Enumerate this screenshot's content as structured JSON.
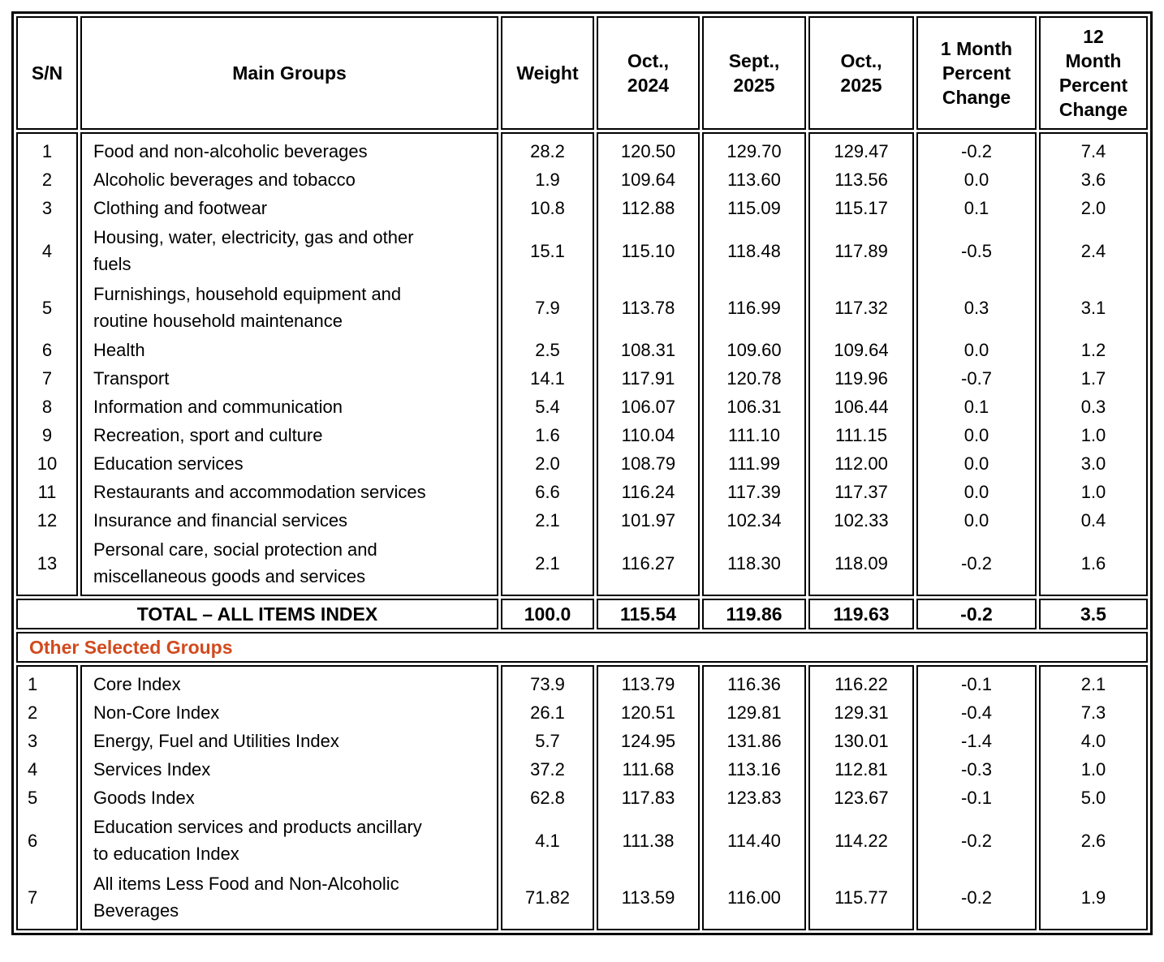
{
  "table": {
    "columns": [
      {
        "key": "sn",
        "label": "S/N"
      },
      {
        "key": "name",
        "label": "Main Groups"
      },
      {
        "key": "weight",
        "label": "Weight"
      },
      {
        "key": "oct2024",
        "label": "Oct.,\n2024"
      },
      {
        "key": "sept2025",
        "label": "Sept.,\n2025"
      },
      {
        "key": "oct2025",
        "label": "Oct.,\n2025"
      },
      {
        "key": "m1",
        "label": "1 Month\nPercent\nChange"
      },
      {
        "key": "m12",
        "label": "12\nMonth\nPercent\nChange"
      }
    ],
    "main_groups": [
      {
        "sn": "1",
        "name": "Food and non-alcoholic beverages",
        "weight": "28.2",
        "oct2024": "120.50",
        "sept2025": "129.70",
        "oct2025": "129.47",
        "m1": "-0.2",
        "m12": "7.4",
        "lines": 1
      },
      {
        "sn": "2",
        "name": "Alcoholic beverages and tobacco",
        "weight": "1.9",
        "oct2024": "109.64",
        "sept2025": "113.60",
        "oct2025": "113.56",
        "m1": "0.0",
        "m12": "3.6",
        "lines": 1
      },
      {
        "sn": "3",
        "name": "Clothing and footwear",
        "weight": "10.8",
        "oct2024": "112.88",
        "sept2025": "115.09",
        "oct2025": "115.17",
        "m1": "0.1",
        "m12": "2.0",
        "lines": 1
      },
      {
        "sn": "4",
        "name": "Housing, water, electricity, gas and other\nfuels",
        "weight": "15.1",
        "oct2024": "115.10",
        "sept2025": "118.48",
        "oct2025": "117.89",
        "m1": "-0.5",
        "m12": "2.4",
        "lines": 2
      },
      {
        "sn": "5",
        "name": "Furnishings, household equipment and\nroutine household maintenance",
        "weight": "7.9",
        "oct2024": "113.78",
        "sept2025": "116.99",
        "oct2025": "117.32",
        "m1": "0.3",
        "m12": "3.1",
        "lines": 2
      },
      {
        "sn": "6",
        "name": "Health",
        "weight": "2.5",
        "oct2024": "108.31",
        "sept2025": "109.60",
        "oct2025": "109.64",
        "m1": "0.0",
        "m12": "1.2",
        "lines": 1
      },
      {
        "sn": "7",
        "name": "Transport",
        "weight": "14.1",
        "oct2024": "117.91",
        "sept2025": "120.78",
        "oct2025": "119.96",
        "m1": "-0.7",
        "m12": "1.7",
        "lines": 1
      },
      {
        "sn": "8",
        "name": "Information and communication",
        "weight": "5.4",
        "oct2024": "106.07",
        "sept2025": "106.31",
        "oct2025": "106.44",
        "m1": "0.1",
        "m12": "0.3",
        "lines": 1
      },
      {
        "sn": "9",
        "name": "Recreation, sport and culture",
        "weight": "1.6",
        "oct2024": "110.04",
        "sept2025": "111.10",
        "oct2025": "111.15",
        "m1": "0.0",
        "m12": "1.0",
        "lines": 1
      },
      {
        "sn": "10",
        "name": "Education services",
        "weight": "2.0",
        "oct2024": "108.79",
        "sept2025": "111.99",
        "oct2025": "112.00",
        "m1": "0.0",
        "m12": "3.0",
        "lines": 1
      },
      {
        "sn": "11",
        "name": "Restaurants and accommodation services",
        "weight": "6.6",
        "oct2024": "116.24",
        "sept2025": "117.39",
        "oct2025": "117.37",
        "m1": "0.0",
        "m12": "1.0",
        "lines": 1
      },
      {
        "sn": "12",
        "name": "Insurance and financial services",
        "weight": "2.1",
        "oct2024": "101.97",
        "sept2025": "102.34",
        "oct2025": "102.33",
        "m1": "0.0",
        "m12": "0.4",
        "lines": 1
      },
      {
        "sn": "13",
        "name": "Personal care, social protection and\nmiscellaneous goods and services",
        "weight": "2.1",
        "oct2024": "116.27",
        "sept2025": "118.30",
        "oct2025": "118.09",
        "m1": "-0.2",
        "m12": "1.6",
        "lines": 2
      }
    ],
    "total_row": {
      "label": "TOTAL – ALL ITEMS INDEX",
      "weight": "100.0",
      "oct2024": "115.54",
      "sept2025": "119.86",
      "oct2025": "119.63",
      "m1": "-0.2",
      "m12": "3.5"
    },
    "section_header": {
      "label": "Other Selected Groups",
      "color": "#D14A1E"
    },
    "other_groups": [
      {
        "sn": "1",
        "name": "Core Index",
        "weight": "73.9",
        "oct2024": "113.79",
        "sept2025": "116.36",
        "oct2025": "116.22",
        "m1": "-0.1",
        "m12": "2.1",
        "lines": 1
      },
      {
        "sn": "2",
        "name": "Non-Core Index",
        "weight": "26.1",
        "oct2024": "120.51",
        "sept2025": "129.81",
        "oct2025": "129.31",
        "m1": "-0.4",
        "m12": "7.3",
        "lines": 1
      },
      {
        "sn": "3",
        "name": "Energy, Fuel and Utilities Index",
        "weight": "5.7",
        "oct2024": "124.95",
        "sept2025": "131.86",
        "oct2025": "130.01",
        "m1": "-1.4",
        "m12": "4.0",
        "lines": 1
      },
      {
        "sn": "4",
        "name": "Services Index",
        "weight": "37.2",
        "oct2024": "111.68",
        "sept2025": "113.16",
        "oct2025": "112.81",
        "m1": "-0.3",
        "m12": "1.0",
        "lines": 1
      },
      {
        "sn": "5",
        "name": "Goods Index",
        "weight": "62.8",
        "oct2024": "117.83",
        "sept2025": "123.83",
        "oct2025": "123.67",
        "m1": "-0.1",
        "m12": "5.0",
        "lines": 1
      },
      {
        "sn": "6",
        "name": "Education services and products ancillary\nto education Index",
        "weight": "4.1",
        "oct2024": "111.38",
        "sept2025": "114.40",
        "oct2025": "114.22",
        "m1": "-0.2",
        "m12": "2.6",
        "lines": 2
      },
      {
        "sn": "7",
        "name": "All items Less Food and Non-Alcoholic\nBeverages",
        "weight": "71.82",
        "oct2024": "113.59",
        "sept2025": "116.00",
        "oct2025": "115.77",
        "m1": "-0.2",
        "m12": "1.9",
        "lines": 2
      }
    ]
  }
}
